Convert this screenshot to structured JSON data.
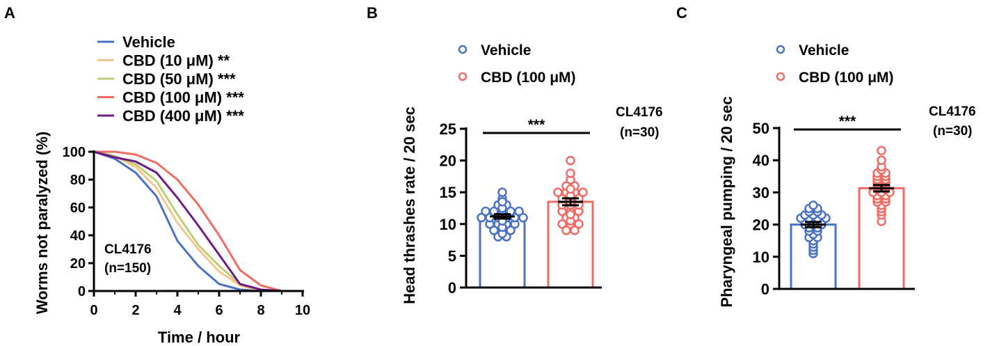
{
  "figure": {
    "panel_labels": [
      "A",
      "B",
      "C"
    ]
  },
  "chart_data": [
    {
      "panel": "A",
      "type": "line",
      "xlabel": "Time / hour",
      "ylabel": "Worms not paralyzed (%)",
      "xlim": [
        0,
        10
      ],
      "ylim": [
        0,
        100
      ],
      "xticks": [
        0,
        2,
        4,
        6,
        8,
        10
      ],
      "yticks": [
        0,
        20,
        40,
        60,
        80,
        100
      ],
      "annotation": [
        "CL4176",
        "(n=150)"
      ],
      "legend_position": "top",
      "series": [
        {
          "name": "Vehicle",
          "sig": "",
          "color": "#4a72c4",
          "x": [
            0,
            1,
            2,
            3,
            4,
            5,
            6,
            7,
            8
          ],
          "y": [
            100,
            95,
            85,
            68,
            36,
            18,
            5,
            1,
            0
          ]
        },
        {
          "name": "CBD (10 μM)",
          "sig": "**",
          "color": "#f5c58f",
          "x": [
            0,
            1,
            2,
            3,
            4,
            5,
            6,
            7,
            8
          ],
          "y": [
            100,
            97,
            89,
            74,
            49,
            30,
            14,
            4,
            0
          ]
        },
        {
          "name": "CBD (50 μM)",
          "sig": "***",
          "color": "#b9cf72",
          "x": [
            0,
            1,
            2,
            3,
            4,
            5,
            6,
            7,
            8
          ],
          "y": [
            100,
            97,
            91,
            79,
            55,
            33,
            18,
            5,
            0
          ]
        },
        {
          "name": "CBD (100 μM)",
          "sig": "***",
          "color": "#ef6b63",
          "x": [
            0,
            1,
            2,
            3,
            4,
            5,
            6,
            7,
            8,
            9
          ],
          "y": [
            100,
            100,
            98,
            92,
            80,
            62,
            40,
            15,
            4,
            0
          ]
        },
        {
          "name": "CBD (400 μM)",
          "sig": "***",
          "color": "#6e1a86",
          "x": [
            0,
            1,
            2,
            3,
            4,
            5,
            6,
            7,
            8,
            9
          ],
          "y": [
            100,
            96,
            93,
            85,
            67,
            47,
            26,
            5,
            1,
            0
          ]
        }
      ]
    },
    {
      "panel": "B",
      "type": "bar",
      "ylabel": "Head thrashes rate / 20 sec",
      "ylim": [
        0,
        25
      ],
      "yticks": [
        0,
        5,
        10,
        15,
        20,
        25
      ],
      "annotation": [
        "CL4176",
        "(n=30)"
      ],
      "significance": "***",
      "legend_position": "top",
      "categories": [
        "Vehicle",
        "CBD (100 μM)"
      ],
      "colors": [
        "#4a72c4",
        "#ef6b63"
      ],
      "values": [
        11.2,
        13.5
      ],
      "sem": [
        0.35,
        0.55
      ],
      "points": [
        [
          8,
          8,
          8.5,
          9,
          9,
          9,
          9.5,
          10,
          10,
          10,
          10,
          10.5,
          11,
          11,
          11,
          11,
          11,
          11,
          11.5,
          12,
          12,
          12,
          12,
          12,
          12.5,
          13,
          13,
          13.5,
          14,
          15
        ],
        [
          9,
          9,
          10,
          10,
          10,
          10.5,
          11,
          11,
          11.5,
          12,
          12,
          12,
          13,
          13,
          13,
          13.5,
          14,
          14,
          14,
          14.5,
          15,
          15,
          15,
          15,
          15.5,
          16,
          16,
          17,
          18,
          20
        ]
      ]
    },
    {
      "panel": "C",
      "type": "bar",
      "ylabel": "Pharyngeal pumping / 20 sec",
      "ylim": [
        0,
        50
      ],
      "yticks": [
        0,
        10,
        20,
        30,
        40,
        50
      ],
      "annotation": [
        "CL4176",
        "(n=30)"
      ],
      "significance": "***",
      "legend_position": "top",
      "categories": [
        "Vehicle",
        "CBD (100 μM)"
      ],
      "colors": [
        "#4a72c4",
        "#ef6b63"
      ],
      "values": [
        20,
        31.3
      ],
      "sem": [
        0.8,
        1.0
      ],
      "points": [
        [
          11,
          12,
          13,
          14,
          15,
          16,
          16,
          17,
          18,
          18,
          19,
          19,
          20,
          20,
          20,
          21,
          21,
          21,
          22,
          22,
          22,
          22,
          23,
          23,
          23,
          24,
          24,
          25,
          25,
          26
        ],
        [
          21,
          23,
          24,
          25,
          26,
          27,
          27,
          28,
          28,
          29,
          29,
          30,
          30,
          30,
          31,
          31,
          32,
          32,
          33,
          33,
          34,
          34,
          35,
          35,
          36,
          36,
          37,
          38,
          40,
          43
        ]
      ]
    }
  ]
}
